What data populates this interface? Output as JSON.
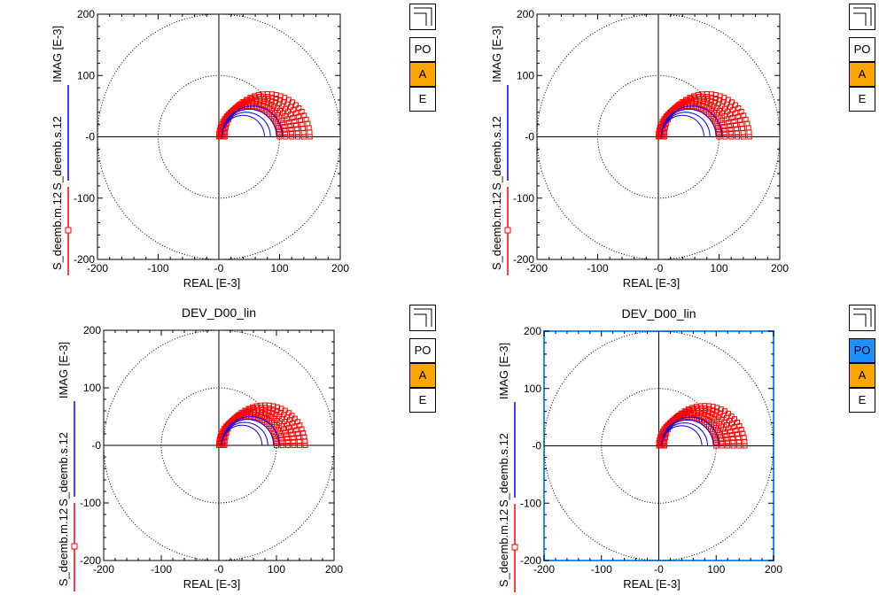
{
  "colors": {
    "series_s": "#0000ff",
    "series_m": "#ff0000",
    "button_active_a": "#ffa500",
    "button_active_po": "#1e90ff",
    "selected_frame": "#1e90ff"
  },
  "panels": [
    {
      "title": "",
      "selected": false,
      "buttons": {
        "icon": "corner-layout-icon",
        "po": "PO",
        "a": "A",
        "e": "E",
        "po_active": false,
        "a_active": true
      },
      "legend": {
        "s": "S_deemb.s.12",
        "m": "S_deemb.m.12"
      }
    },
    {
      "title": "",
      "selected": false,
      "buttons": {
        "icon": "corner-layout-icon",
        "po": "PO",
        "a": "A",
        "e": "E",
        "po_active": false,
        "a_active": true
      },
      "legend": {
        "s": "S_deemb.s.12",
        "m": "S_deemb.m.12"
      }
    },
    {
      "title": "DEV_D00_lin",
      "selected": false,
      "buttons": {
        "icon": "corner-layout-icon",
        "po": "PO",
        "a": "A",
        "e": "E",
        "po_active": false,
        "a_active": true
      },
      "legend": {
        "s": "S_deemb.s.12",
        "m": "S_deemb.m.12"
      }
    },
    {
      "title": "DEV_D00_lin",
      "selected": true,
      "buttons": {
        "icon": "corner-layout-icon",
        "po": "PO",
        "a": "A",
        "e": "E",
        "po_active": true,
        "a_active": true
      },
      "legend": {
        "s": "S_deemb.s.12",
        "m": "S_deemb.m.12"
      }
    }
  ],
  "chart_data": [
    {
      "type": "scatter",
      "title": "",
      "xlabel": "REAL [E-3]",
      "ylabel": "IMAG [E-3]",
      "xlim": [
        -200,
        200
      ],
      "ylim": [
        -200,
        200
      ],
      "xticks": [
        "-200",
        "-100",
        "-0",
        "100",
        "200"
      ],
      "yticks": [
        "200",
        "100",
        "-0",
        "-100",
        "-200"
      ],
      "reference_circles": [
        100,
        200
      ],
      "series": [
        {
          "name": "S_deemb.s.12",
          "arcs": [
            {
              "r": 35,
              "dx": 5
            },
            {
              "r": 40,
              "dx": 5
            },
            {
              "r": 45,
              "dx": 5
            },
            {
              "r": 50,
              "dx": 5
            }
          ]
        },
        {
          "name": "S_deemb.m.12",
          "arcs": [
            {
              "r": 50,
              "dx": 0
            },
            {
              "r": 54,
              "dx": 2
            },
            {
              "r": 58,
              "dx": 4
            },
            {
              "r": 62,
              "dx": 6
            },
            {
              "r": 66,
              "dx": 8
            },
            {
              "r": 70,
              "dx": 10
            }
          ]
        }
      ]
    },
    {
      "type": "scatter",
      "title": "",
      "xlabel": "REAL [E-3]",
      "ylabel": "IMAG [E-3]",
      "xlim": [
        -200,
        200
      ],
      "ylim": [
        -200,
        200
      ],
      "xticks": [
        "-200",
        "-100",
        "-0",
        "100",
        "200"
      ],
      "yticks": [
        "200",
        "100",
        "-0",
        "-100",
        "-200"
      ],
      "reference_circles": [
        100,
        200
      ],
      "series": [
        {
          "name": "S_deemb.s.12",
          "arcs": [
            {
              "r": 35,
              "dx": 5
            },
            {
              "r": 40,
              "dx": 5
            },
            {
              "r": 45,
              "dx": 5
            },
            {
              "r": 50,
              "dx": 5
            }
          ]
        },
        {
          "name": "S_deemb.m.12",
          "arcs": [
            {
              "r": 50,
              "dx": 0
            },
            {
              "r": 54,
              "dx": 2
            },
            {
              "r": 58,
              "dx": 4
            },
            {
              "r": 62,
              "dx": 6
            },
            {
              "r": 66,
              "dx": 8
            },
            {
              "r": 70,
              "dx": 10
            }
          ]
        }
      ]
    },
    {
      "type": "scatter",
      "title": "DEV_D00_lin",
      "xlabel": "REAL [E-3]",
      "ylabel": "IMAG [E-3]",
      "xlim": [
        -200,
        200
      ],
      "ylim": [
        -200,
        200
      ],
      "xticks": [
        "-200",
        "-100",
        "-0",
        "100",
        "200"
      ],
      "yticks": [
        "200",
        "100",
        "-0",
        "-100",
        "-200"
      ],
      "reference_circles": [
        100,
        200
      ],
      "series": [
        {
          "name": "S_deemb.s.12",
          "arcs": [
            {
              "r": 35,
              "dx": 5
            },
            {
              "r": 40,
              "dx": 5
            },
            {
              "r": 45,
              "dx": 5
            },
            {
              "r": 50,
              "dx": 5
            }
          ]
        },
        {
          "name": "S_deemb.m.12",
          "arcs": [
            {
              "r": 50,
              "dx": 0
            },
            {
              "r": 54,
              "dx": 2
            },
            {
              "r": 58,
              "dx": 4
            },
            {
              "r": 62,
              "dx": 6
            },
            {
              "r": 66,
              "dx": 8
            },
            {
              "r": 70,
              "dx": 10
            }
          ]
        }
      ]
    },
    {
      "type": "scatter",
      "title": "DEV_D00_lin",
      "xlabel": "REAL [E-3]",
      "ylabel": "IMAG [E-3]",
      "xlim": [
        -200,
        200
      ],
      "ylim": [
        -200,
        200
      ],
      "xticks": [
        "-200",
        "-100",
        "-0",
        "100",
        "200"
      ],
      "yticks": [
        "200",
        "100",
        "-0",
        "-100",
        "-200"
      ],
      "reference_circles": [
        100,
        200
      ],
      "series": [
        {
          "name": "S_deemb.s.12",
          "arcs": [
            {
              "r": 35,
              "dx": 5
            },
            {
              "r": 40,
              "dx": 5
            },
            {
              "r": 45,
              "dx": 5
            },
            {
              "r": 50,
              "dx": 5
            }
          ]
        },
        {
          "name": "S_deemb.m.12",
          "arcs": [
            {
              "r": 50,
              "dx": 0
            },
            {
              "r": 54,
              "dx": 2
            },
            {
              "r": 58,
              "dx": 4
            },
            {
              "r": 62,
              "dx": 6
            },
            {
              "r": 66,
              "dx": 8
            },
            {
              "r": 70,
              "dx": 10
            }
          ]
        }
      ]
    }
  ]
}
